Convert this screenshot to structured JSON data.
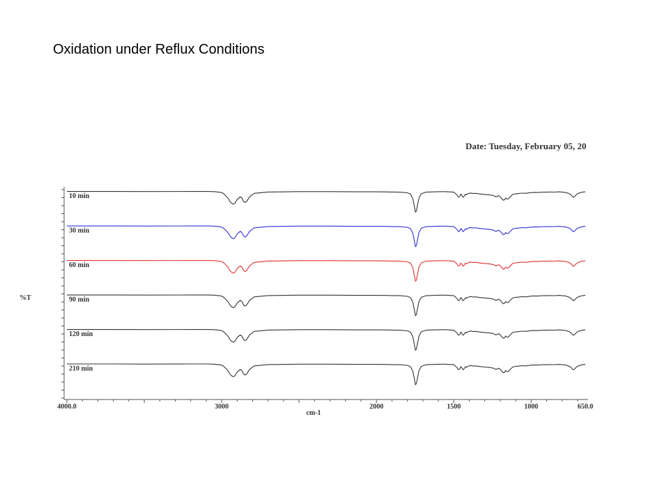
{
  "slide": {
    "title": "Oxidation under Reflux Conditions",
    "date_stamp": "Date: Tuesday, February 05, 20"
  },
  "chart_data": {
    "type": "line",
    "title": "",
    "xlabel": "cm-1",
    "ylabel": "%T",
    "xlim": [
      4000,
      650
    ],
    "x_reversed": true,
    "x_ticks": [
      {
        "value": 4000,
        "label": "4000.0"
      },
      {
        "value": 3000,
        "label": "3000"
      },
      {
        "value": 2000,
        "label": "2000"
      },
      {
        "value": 1500,
        "label": "1500"
      },
      {
        "value": 1000,
        "label": "1000"
      },
      {
        "value": 650,
        "label": "650.0"
      }
    ],
    "y_ticks_shown": false,
    "grid": false,
    "legend": "none",
    "stacked_offset": true,
    "series": [
      {
        "name": "10 min",
        "color": "#333333"
      },
      {
        "name": "30 min",
        "color": "#3030d0"
      },
      {
        "name": "60 min",
        "color": "#e03030"
      },
      {
        "name": "90 min",
        "color": "#333333"
      },
      {
        "name": "120 min",
        "color": "#333333"
      },
      {
        "name": "210 min",
        "color": "#333333"
      }
    ],
    "shared_profile": {
      "x": [
        4000,
        3700,
        3500,
        3200,
        3100,
        3050,
        3005,
        2990,
        2980,
        2960,
        2945,
        2935,
        2925,
        2915,
        2900,
        2880,
        2870,
        2860,
        2850,
        2840,
        2820,
        2790,
        2700,
        2500,
        2300,
        2100,
        2000,
        1950,
        1900,
        1850,
        1800,
        1780,
        1765,
        1755,
        1748,
        1742,
        1735,
        1725,
        1710,
        1680,
        1620,
        1560,
        1500,
        1480,
        1470,
        1462,
        1455,
        1447,
        1440,
        1432,
        1425,
        1418,
        1410,
        1400,
        1390,
        1380,
        1370,
        1360,
        1350,
        1340,
        1320,
        1300,
        1280,
        1260,
        1240,
        1230,
        1220,
        1210,
        1200,
        1190,
        1180,
        1170,
        1165,
        1160,
        1150,
        1140,
        1130,
        1120,
        1100,
        1080,
        1060,
        1040,
        1020,
        1000,
        980,
        960,
        940,
        920,
        900,
        880,
        860,
        840,
        820,
        800,
        780,
        760,
        745,
        735,
        728,
        722,
        715,
        705,
        690,
        670,
        650
      ],
      "transmittance": [
        99,
        99,
        98.8,
        99,
        99,
        98.5,
        96.5,
        94,
        90,
        82,
        72,
        68,
        66,
        68,
        78,
        85,
        82,
        74,
        70,
        72,
        85,
        94,
        97.5,
        98.5,
        98.5,
        98,
        98,
        97.8,
        97.5,
        97,
        95.5,
        92,
        80,
        60,
        45,
        48,
        62,
        82,
        93,
        97,
        98,
        98.5,
        97,
        90,
        84,
        86,
        92,
        88,
        84,
        87,
        92,
        90,
        93,
        94,
        95,
        94,
        93.5,
        94,
        93.5,
        93,
        92,
        91,
        90.5,
        89.5,
        87.5,
        85,
        86,
        88,
        85,
        80,
        76,
        78,
        82,
        80,
        79,
        83,
        87,
        91,
        93,
        93.5,
        94.5,
        94,
        95,
        96,
        96.5,
        96.2,
        96.8,
        97.3,
        97,
        97.5,
        97.2,
        97.5,
        98,
        97,
        96.5,
        94,
        91,
        86,
        84,
        85,
        88,
        92,
        95,
        97,
        98
      ]
    }
  }
}
